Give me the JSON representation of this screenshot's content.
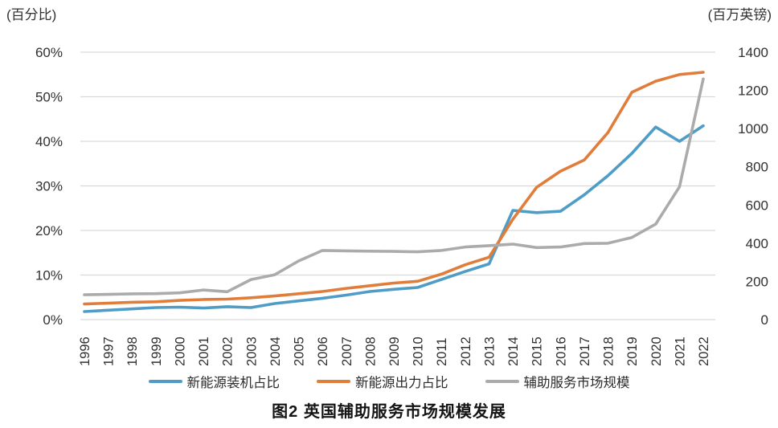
{
  "caption": "图2  英国辅助服务市场规模发展",
  "colors": {
    "blue_series": "#4f9dc6",
    "orange_series": "#e17d3a",
    "gray_series": "#ababab",
    "gridline": "#d9d9d9",
    "text": "#303030"
  },
  "chart_data": {
    "type": "line",
    "title": "图2  英国辅助服务市场规模发展",
    "grid": true,
    "legend_position": "bottom",
    "x": [
      1996,
      1997,
      1998,
      1999,
      2000,
      2001,
      2002,
      2003,
      2004,
      2005,
      2006,
      2007,
      2008,
      2009,
      2010,
      2011,
      2012,
      2013,
      2014,
      2015,
      2016,
      2017,
      2018,
      2019,
      2020,
      2021,
      2022
    ],
    "left_axis": {
      "label": "(百分比)",
      "min": 0,
      "max": 60,
      "tick_step": 10,
      "ticks": [
        "0%",
        "10%",
        "20%",
        "30%",
        "40%",
        "50%",
        "60%"
      ]
    },
    "right_axis": {
      "label": "(百万英镑)",
      "min": 0,
      "max": 1400,
      "tick_step": 200,
      "ticks": [
        "0",
        "200",
        "400",
        "600",
        "800",
        "1000",
        "1200",
        "1400"
      ]
    },
    "series": [
      {
        "name": "新能源装机占比",
        "axis": "left",
        "unit": "%",
        "color": "#4f9dc6",
        "values": [
          1.8,
          2.1,
          2.4,
          2.7,
          2.8,
          2.6,
          2.9,
          2.7,
          3.6,
          4.2,
          4.8,
          5.5,
          6.3,
          6.8,
          7.2,
          9.0,
          10.8,
          12.5,
          24.5,
          24.0,
          24.3,
          28.0,
          32.3,
          37.3,
          43.2,
          40.0,
          43.5
        ]
      },
      {
        "name": "新能源出力占比",
        "axis": "left",
        "unit": "%",
        "color": "#e17d3a",
        "values": [
          3.5,
          3.7,
          3.9,
          4.0,
          4.3,
          4.5,
          4.6,
          4.9,
          5.3,
          5.8,
          6.3,
          7.0,
          7.6,
          8.2,
          8.6,
          10.2,
          12.3,
          14.0,
          22.5,
          29.7,
          33.3,
          35.8,
          42.0,
          51.0,
          53.5,
          55.0,
          55.5
        ]
      },
      {
        "name": "辅助服务市场规模",
        "axis": "right",
        "unit": "百万英镑",
        "color": "#ababab",
        "values": [
          130,
          132,
          135,
          136,
          140,
          155,
          146,
          210,
          235,
          307,
          362,
          360,
          358,
          357,
          355,
          362,
          380,
          387,
          395,
          377,
          380,
          398,
          400,
          430,
          500,
          695,
          1260
        ]
      }
    ]
  }
}
